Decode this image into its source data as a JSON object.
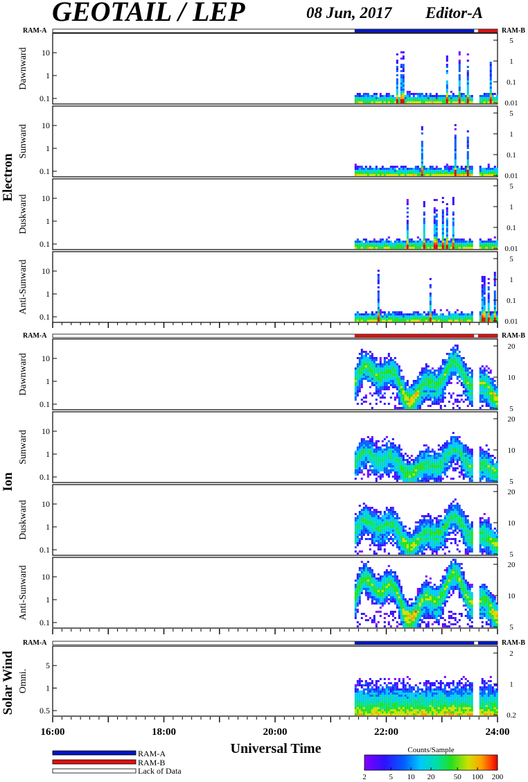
{
  "header": {
    "title": "GEOTAIL / LEP",
    "date": "08 Jun, 2017",
    "editor": "Editor-A"
  },
  "labels": {
    "ram_a": "RAM-A",
    "ram_b": "RAM-B",
    "xlabel": "Universal Time",
    "colorbar_title": "Counts/Sample"
  },
  "legend": {
    "items": [
      {
        "label": "RAM-A",
        "color": "#0015c8"
      },
      {
        "label": "RAM-B",
        "color": "#e01010"
      },
      {
        "label": "Lack of Data",
        "color": "#ffffff"
      }
    ]
  },
  "colors": {
    "ram_a": "#0015c8",
    "ram_b": "#e01010",
    "colormap": [
      "#ffffff",
      "#8000ff",
      "#3010ff",
      "#0060ff",
      "#00c8ff",
      "#00e0a0",
      "#20e020",
      "#d0e000",
      "#ffa000",
      "#ff4000",
      "#e00000"
    ]
  },
  "chart_data": {
    "type": "heatmap",
    "xlabel": "Universal Time",
    "x_ticks": [
      "16:00",
      "18:00",
      "20:00",
      "22:00",
      "24:00"
    ],
    "x_range_hours": [
      16,
      24
    ],
    "data_start_hour": 21.43,
    "data_gap_hours": [
      23.58,
      23.65
    ],
    "colorbar": {
      "title": "Counts/Sample",
      "ticks": [
        "2",
        "5",
        "10",
        "20",
        "50",
        "100",
        "200"
      ],
      "scale": "log",
      "range": [
        2,
        200
      ]
    },
    "groups": [
      {
        "name": "Electron",
        "ram_mode": [
          {
            "from": 21.43,
            "to": 23.58,
            "mode": "RAM-A"
          },
          {
            "from": 23.65,
            "to": 24,
            "mode": "RAM-B"
          }
        ],
        "left_ticks": [
          "10",
          "1",
          "0.1"
        ],
        "right_ticks": [
          "5",
          "1",
          "0.1",
          "0.01"
        ],
        "panels": [
          {
            "name": "Dawnward",
            "intensity": 0.5
          },
          {
            "name": "Sunward",
            "intensity": 0.45
          },
          {
            "name": "Duskward",
            "intensity": 0.5
          },
          {
            "name": "Anti-Sunward",
            "intensity": 0.55
          }
        ]
      },
      {
        "name": "Ion",
        "ram_mode": [
          {
            "from": 21.43,
            "to": 23.58,
            "mode": "RAM-B"
          },
          {
            "from": 23.65,
            "to": 24,
            "mode": "RAM-B"
          }
        ],
        "left_ticks": [
          "10",
          "1",
          "0.1"
        ],
        "right_ticks": [
          "20",
          "10",
          "5"
        ],
        "panels": [
          {
            "name": "Dawnward",
            "intensity": 0.7
          },
          {
            "name": "Sunward",
            "intensity": 0.45
          },
          {
            "name": "Duskward",
            "intensity": 0.55
          },
          {
            "name": "Anti-Sunward",
            "intensity": 0.8
          }
        ]
      },
      {
        "name": "Solar Wind",
        "ram_mode": [
          {
            "from": 21.43,
            "to": 23.58,
            "mode": "RAM-A"
          },
          {
            "from": 23.65,
            "to": 24,
            "mode": "RAM-A"
          }
        ],
        "left_ticks": [
          "5",
          "1",
          "0.5"
        ],
        "right_ticks": [
          "2",
          "1",
          "0.2"
        ],
        "panels": [
          {
            "name": "Omni.",
            "intensity": 0.65
          }
        ]
      }
    ]
  }
}
